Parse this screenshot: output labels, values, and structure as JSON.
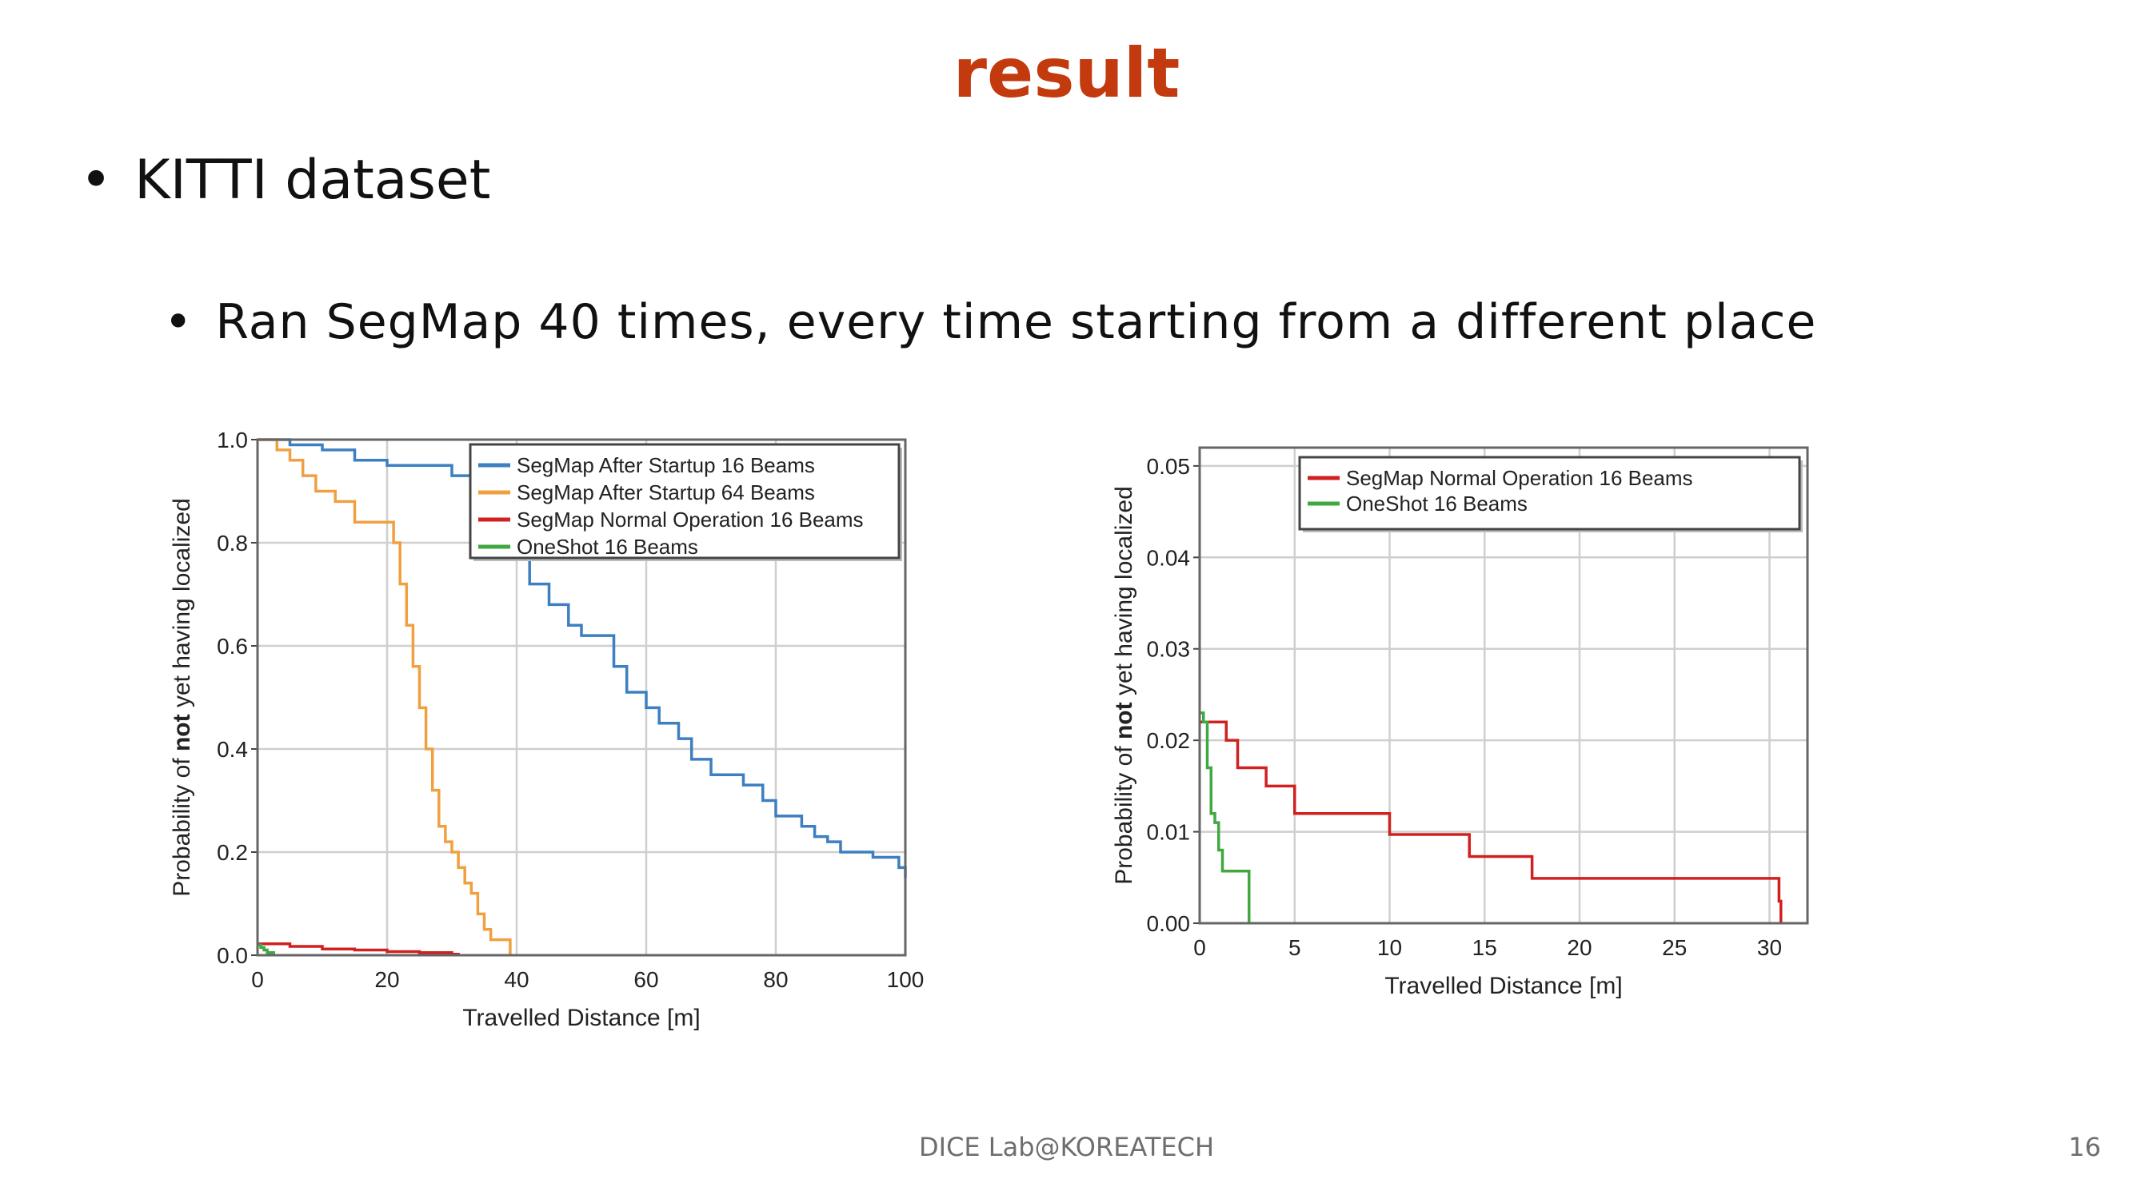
{
  "slide": {
    "title": "result",
    "bullet1": "KITTI dataset",
    "bullet2": "Ran SegMap 40 times, every time starting from a different place",
    "footer": "DICE Lab@KOREATECH",
    "page_number": "16"
  },
  "chart_data": [
    {
      "type": "line",
      "xlabel": "Travelled Distance [m]",
      "ylabel_parts": [
        "Probability of ",
        "not",
        " yet having localized"
      ],
      "xlim": [
        0,
        100
      ],
      "ylim": [
        0,
        1.0
      ],
      "xticks": [
        0,
        20,
        40,
        60,
        80,
        100
      ],
      "xtick_labels": [
        "0",
        "20",
        "40",
        "60",
        "80",
        "100"
      ],
      "yticks": [
        0,
        0.2,
        0.4,
        0.6,
        0.8,
        1.0
      ],
      "ytick_labels": [
        "0.0",
        "0.2",
        "0.4",
        "0.6",
        "0.8",
        "1.0"
      ],
      "grid": true,
      "legend_position": "top-right",
      "series": [
        {
          "name": "SegMap After Startup 16 Beams",
          "color": "#3d7fc1",
          "x": [
            0,
            5,
            10,
            15,
            20,
            25,
            30,
            35,
            40,
            42,
            45,
            48,
            50,
            55,
            57,
            60,
            62,
            65,
            67,
            70,
            75,
            78,
            80,
            84,
            86,
            88,
            90,
            95,
            99,
            100
          ],
          "y": [
            1.0,
            0.99,
            0.98,
            0.96,
            0.95,
            0.95,
            0.93,
            0.9,
            0.78,
            0.72,
            0.68,
            0.64,
            0.62,
            0.56,
            0.51,
            0.48,
            0.45,
            0.42,
            0.38,
            0.35,
            0.33,
            0.3,
            0.27,
            0.25,
            0.23,
            0.22,
            0.2,
            0.19,
            0.17,
            0.15
          ]
        },
        {
          "name": "SegMap After Startup 64 Beams",
          "color": "#f0a040",
          "x": [
            0,
            3,
            5,
            7,
            9,
            12,
            15,
            20,
            21,
            22,
            23,
            24,
            25,
            26,
            27,
            28,
            29,
            30,
            31,
            32,
            33,
            34,
            35,
            36,
            38,
            39
          ],
          "y": [
            1.0,
            0.98,
            0.96,
            0.93,
            0.9,
            0.88,
            0.84,
            0.84,
            0.8,
            0.72,
            0.64,
            0.56,
            0.48,
            0.4,
            0.32,
            0.25,
            0.22,
            0.2,
            0.17,
            0.14,
            0.12,
            0.08,
            0.05,
            0.03,
            0.03,
            0.0
          ]
        },
        {
          "name": "SegMap Normal Operation 16 Beams",
          "color": "#d02020",
          "x": [
            0,
            5,
            10,
            15,
            20,
            25,
            30,
            31
          ],
          "y": [
            0.022,
            0.017,
            0.012,
            0.01,
            0.007,
            0.005,
            0.002,
            0.0
          ]
        },
        {
          "name": "OneShot 16 Beams",
          "color": "#40a840",
          "x": [
            0,
            0.5,
            1,
            1.5,
            2.5
          ],
          "y": [
            0.02,
            0.015,
            0.01,
            0.005,
            0.0
          ]
        }
      ]
    },
    {
      "type": "line",
      "xlabel": "Travelled Distance [m]",
      "ylabel_parts": [
        "Probability of ",
        "not",
        " yet having localized"
      ],
      "xlim": [
        0,
        32
      ],
      "ylim": [
        0,
        0.052
      ],
      "xticks": [
        0,
        5,
        10,
        15,
        20,
        25,
        30
      ],
      "xtick_labels": [
        "0",
        "5",
        "10",
        "15",
        "20",
        "25",
        "30"
      ],
      "yticks": [
        0,
        0.01,
        0.02,
        0.03,
        0.04,
        0.05
      ],
      "ytick_labels": [
        "0.00",
        "0.01",
        "0.02",
        "0.03",
        "0.04",
        "0.05"
      ],
      "grid": true,
      "legend_position": "top-right",
      "series": [
        {
          "name": "SegMap Normal Operation 16 Beams",
          "color": "#d02020",
          "x": [
            0,
            1,
            1.4,
            2,
            3.5,
            5,
            10,
            14.2,
            17.5,
            27.5,
            30.5,
            30.6
          ],
          "y": [
            0.022,
            0.022,
            0.02,
            0.017,
            0.015,
            0.012,
            0.0097,
            0.0073,
            0.0049,
            0.0049,
            0.0024,
            0.0
          ],
          "step": true
        },
        {
          "name": "OneShot 16 Beams",
          "color": "#40a840",
          "x": [
            0,
            0.2,
            0.4,
            0.6,
            0.8,
            1.0,
            1.2,
            2.6,
            2.6
          ],
          "y": [
            0.023,
            0.022,
            0.017,
            0.012,
            0.011,
            0.008,
            0.0057,
            0.0057,
            0.0
          ],
          "step": true
        }
      ]
    }
  ]
}
